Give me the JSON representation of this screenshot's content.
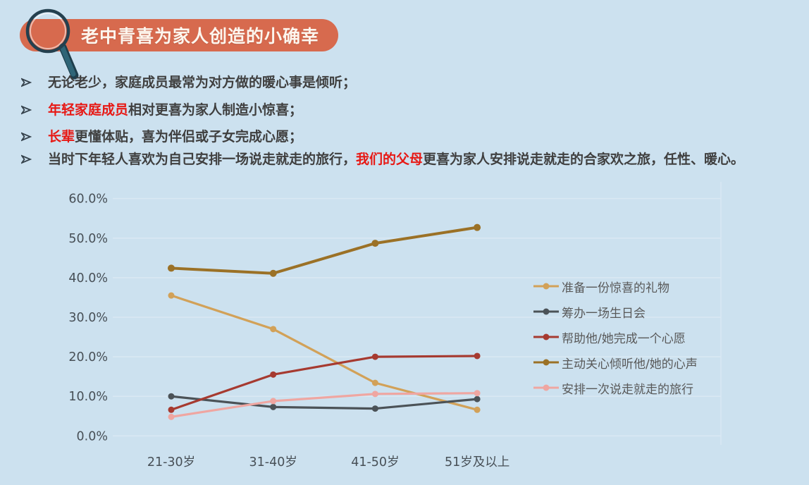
{
  "page": {
    "background": "#cce1ef"
  },
  "header": {
    "title": "老中青喜为家人创造的小确幸",
    "banner_color": "#d76a4e",
    "title_color": "#fdf6ee",
    "icon": "magnifier-icon"
  },
  "bullets": {
    "marker_glyph": "➢",
    "text_color": "#3f3f3f",
    "highlight_color": "#e71814",
    "items": [
      {
        "segments": [
          {
            "text": "无论老少，家庭成员最常为对方做的暖心事是倾听；",
            "red": false
          }
        ]
      },
      {
        "segments": [
          {
            "text": "年轻家庭成员",
            "red": true
          },
          {
            "text": "相对更喜为家人制造小惊喜；",
            "red": false
          }
        ]
      },
      {
        "segments": [
          {
            "text": "长辈",
            "red": true
          },
          {
            "text": "更懂体贴，喜为伴侣或子女完成心愿；",
            "red": false
          }
        ]
      },
      {
        "segments": [
          {
            "text": "当时下年轻人喜欢为自己安排一场说走就走的旅行，",
            "red": false
          },
          {
            "text": "我们的父母",
            "red": true
          },
          {
            "text": "更喜为家人安排说走就走的合家欢之旅，任性、暖心。",
            "red": false
          }
        ]
      }
    ]
  },
  "chart_data": {
    "type": "line",
    "title": "",
    "xlabel": "",
    "ylabel": "",
    "categories": [
      "21-30岁",
      "31-40岁",
      "41-50岁",
      "51岁及以上"
    ],
    "y_ticks": [
      "0.0%",
      "10.0%",
      "20.0%",
      "30.0%",
      "40.0%",
      "50.0%",
      "60.0%"
    ],
    "ylim": [
      0,
      60
    ],
    "grid": true,
    "legend_position": "right-overlay",
    "tick_color": "#474f56",
    "gridline_color": "#d9e8f3",
    "series": [
      {
        "name": "准备一份惊喜的礼物",
        "color": "#d2a158",
        "values": [
          35.5,
          27.0,
          13.4,
          6.6
        ]
      },
      {
        "name": "筹办一场生日会",
        "color": "#4b5257",
        "values": [
          10.0,
          7.3,
          6.9,
          9.3
        ]
      },
      {
        "name": "帮助他/她完成一个心愿",
        "color": "#a63a30",
        "values": [
          6.6,
          15.5,
          20.0,
          20.2
        ]
      },
      {
        "name": "主动关心倾听他/她的心声",
        "color": "#9b7126",
        "values": [
          42.4,
          41.1,
          48.7,
          52.7
        ]
      },
      {
        "name": "安排一次说走就走的旅行",
        "color": "#efa6a1",
        "values": [
          4.8,
          8.8,
          10.6,
          10.8
        ]
      }
    ]
  }
}
